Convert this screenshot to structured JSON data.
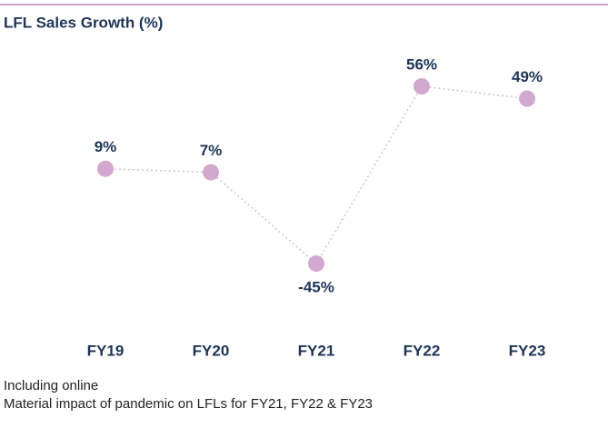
{
  "chart_data": {
    "type": "line",
    "title": "LFL Sales Growth (%)",
    "categories": [
      "FY19",
      "FY20",
      "FY21",
      "FY22",
      "FY23"
    ],
    "values": [
      9,
      7,
      -45,
      56,
      49
    ],
    "value_labels": [
      "9%",
      "7%",
      "-45%",
      "56%",
      "49%"
    ],
    "color": "#d3a8d0",
    "annotations": [
      "Including online",
      "Material impact of pandemic on LFLs for FY21, FY22 & FY23"
    ]
  }
}
